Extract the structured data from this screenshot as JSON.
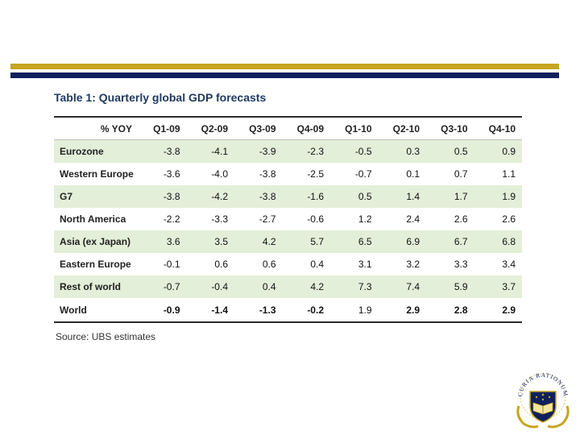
{
  "title": "Table 1: Quarterly global GDP forecasts",
  "header": [
    "% YOY",
    "Q1-09",
    "Q2-09",
    "Q3-09",
    "Q4-09",
    "Q1-10",
    "Q2-10",
    "Q3-10",
    "Q4-10"
  ],
  "rows": [
    {
      "label": "Eurozone",
      "values": [
        "-3.8",
        "-4.1",
        "-3.9",
        "-2.3",
        "-0.5",
        "0.3",
        "0.5",
        "0.9"
      ]
    },
    {
      "label": "Western Europe",
      "values": [
        "-3.6",
        "-4.0",
        "-3.8",
        "-2.5",
        "-0.7",
        "0.1",
        "0.7",
        "1.1"
      ]
    },
    {
      "label": "G7",
      "values": [
        "-3.8",
        "-4.2",
        "-3.8",
        "-1.6",
        "0.5",
        "1.4",
        "1.7",
        "1.9"
      ]
    },
    {
      "label": "North America",
      "values": [
        "-2.2",
        "-3.3",
        "-2.7",
        "-0.6",
        "1.2",
        "2.4",
        "2.6",
        "2.6"
      ]
    },
    {
      "label": "Asia (ex Japan)",
      "values": [
        "3.6",
        "3.5",
        "4.2",
        "5.7",
        "6.5",
        "6.9",
        "6.7",
        "6.8"
      ]
    },
    {
      "label": "Eastern Europe",
      "values": [
        "-0.1",
        "0.6",
        "0.6",
        "0.4",
        "3.1",
        "3.2",
        "3.3",
        "3.4"
      ]
    },
    {
      "label": "Rest of world",
      "values": [
        "-0.7",
        "-0.4",
        "0.4",
        "4.2",
        "7.3",
        "7.4",
        "5.9",
        "3.7"
      ]
    },
    {
      "label": "World",
      "values": [
        "-0.9",
        "-1.4",
        "-1.3",
        "-0.2",
        "1.9",
        "2.9",
        "2.8",
        "2.9"
      ]
    }
  ],
  "source": "Source: UBS estimates",
  "colors": {
    "gold": "#C6A51F",
    "navy": "#10205E",
    "shade": "#E3EFD8",
    "title": "#1F3A60"
  },
  "logo": {
    "text": "CURIA RATIONUM",
    "name": "seal-emblem"
  }
}
